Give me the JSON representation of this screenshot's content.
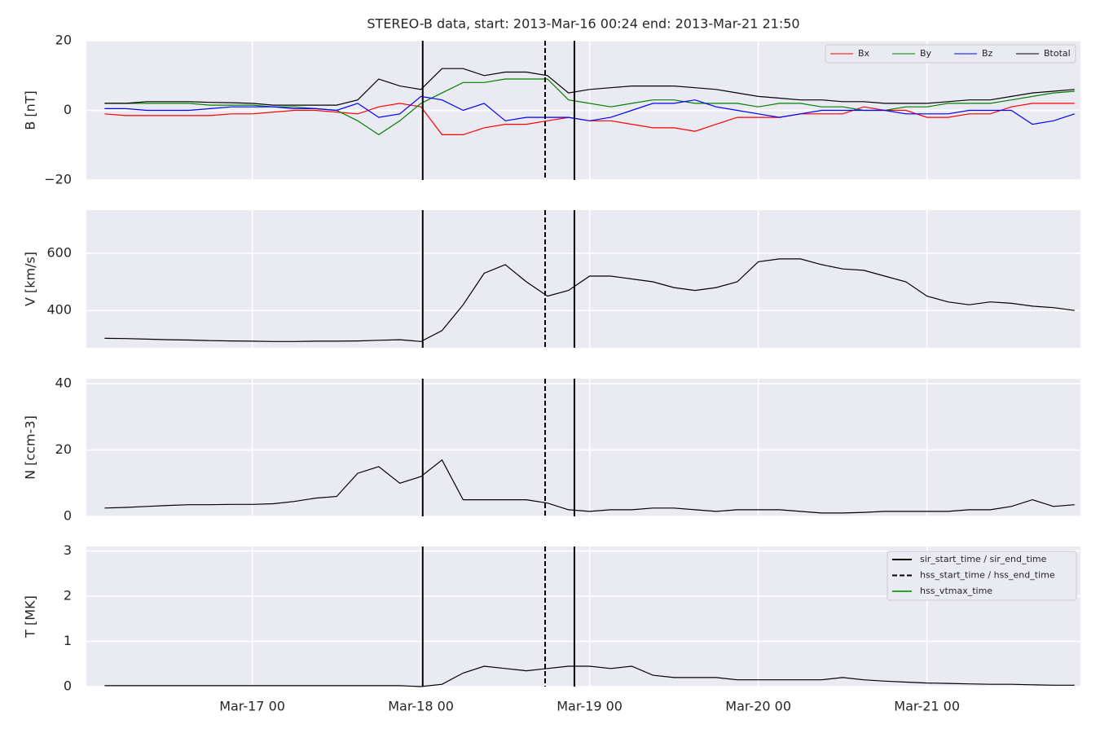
{
  "chart_data": [
    {
      "type": "line",
      "title": "STEREO-B data, start: 2013-Mar-16 00:24  end: 2013-Mar-21 21:50",
      "ylabel": "B [nT]",
      "ylim": [
        -20,
        20
      ],
      "yticks": [
        {
          "value": -20,
          "label": "−20"
        },
        0,
        20
      ],
      "grid": true,
      "legend": "upper right",
      "x": [
        "Mar-16 03",
        "Mar-16 06",
        "Mar-16 09",
        "Mar-16 12",
        "Mar-16 15",
        "Mar-16 18",
        "Mar-16 21",
        "Mar-17 00",
        "Mar-17 03",
        "Mar-17 06",
        "Mar-17 09",
        "Mar-17 12",
        "Mar-17 15",
        "Mar-17 18",
        "Mar-17 21",
        "Mar-18 00",
        "Mar-18 03",
        "Mar-18 06",
        "Mar-18 09",
        "Mar-18 12",
        "Mar-18 15",
        "Mar-18 18",
        "Mar-18 21",
        "Mar-19 00",
        "Mar-19 03",
        "Mar-19 06",
        "Mar-19 09",
        "Mar-19 12",
        "Mar-19 15",
        "Mar-19 18",
        "Mar-19 21",
        "Mar-20 00",
        "Mar-20 03",
        "Mar-20 06",
        "Mar-20 09",
        "Mar-20 12",
        "Mar-20 15",
        "Mar-20 18",
        "Mar-20 21",
        "Mar-21 00",
        "Mar-21 03",
        "Mar-21 06",
        "Mar-21 09",
        "Mar-21 12",
        "Mar-21 15",
        "Mar-21 18",
        "Mar-21 21"
      ],
      "series": [
        {
          "name": "Bx",
          "color": "#ff0000",
          "values": [
            -1,
            -1.5,
            -1.5,
            -1.5,
            -1.5,
            -1.5,
            -1,
            -1,
            -0.5,
            0,
            0,
            -0.5,
            -1,
            1,
            2,
            1,
            -7,
            -7,
            -5,
            -4,
            -4,
            -3,
            -2,
            -3,
            -3,
            -4,
            -5,
            -5,
            -6,
            -4,
            -2,
            -2,
            -2,
            -1,
            -1,
            -1,
            1,
            0,
            0,
            -2,
            -2,
            -1,
            -1,
            1,
            2,
            2,
            2
          ]
        },
        {
          "name": "By",
          "color": "#008000",
          "values": [
            2,
            2,
            2,
            2,
            2,
            1.5,
            1.5,
            1.5,
            1,
            1,
            0.5,
            0,
            -3,
            -7,
            -3,
            2,
            5,
            8,
            8,
            9,
            9,
            9,
            3,
            2,
            1,
            2,
            3,
            3,
            2,
            2,
            2,
            1,
            2,
            2,
            1,
            1,
            0,
            0,
            1,
            1,
            2,
            2,
            2,
            3,
            4,
            5,
            5.5
          ]
        },
        {
          "name": "Bz",
          "color": "#0000ff",
          "values": [
            0.5,
            0.5,
            0,
            0,
            0,
            0.5,
            1,
            1,
            1,
            0.5,
            0.5,
            0,
            2,
            -2,
            -1,
            4,
            3,
            0,
            2,
            -3,
            -2,
            -2,
            -2,
            -3,
            -2,
            0,
            2,
            2,
            3,
            1,
            0,
            -1,
            -2,
            -1,
            0,
            0,
            0,
            0,
            -1,
            -1,
            -1,
            0,
            0,
            0,
            -4,
            -3,
            -1
          ]
        },
        {
          "name": "Btotal",
          "color": "#000000",
          "values": [
            2,
            2,
            2.5,
            2.5,
            2.5,
            2.3,
            2.2,
            2,
            1.5,
            1.5,
            1.5,
            1.5,
            3,
            9,
            7,
            6,
            12,
            12,
            10,
            11,
            11,
            10,
            5,
            6,
            6.5,
            7,
            7,
            7,
            6.5,
            6,
            5,
            4,
            3.5,
            3,
            3,
            2.5,
            2.5,
            2,
            2,
            2,
            2.5,
            3,
            3,
            4,
            5,
            5.5,
            6
          ]
        }
      ]
    },
    {
      "type": "line",
      "ylabel": "V [km/s]",
      "ylim": [
        270,
        750
      ],
      "yticks": [
        400,
        600
      ],
      "grid": true,
      "x": [
        "Mar-16 03",
        "Mar-16 06",
        "Mar-16 09",
        "Mar-16 12",
        "Mar-16 15",
        "Mar-16 18",
        "Mar-16 21",
        "Mar-17 00",
        "Mar-17 03",
        "Mar-17 06",
        "Mar-17 09",
        "Mar-17 12",
        "Mar-17 15",
        "Mar-17 18",
        "Mar-17 21",
        "Mar-18 00",
        "Mar-18 03",
        "Mar-18 06",
        "Mar-18 09",
        "Mar-18 12",
        "Mar-18 15",
        "Mar-18 18",
        "Mar-18 21",
        "Mar-19 00",
        "Mar-19 03",
        "Mar-19 06",
        "Mar-19 09",
        "Mar-19 12",
        "Mar-19 15",
        "Mar-19 18",
        "Mar-19 21",
        "Mar-20 00",
        "Mar-20 03",
        "Mar-20 06",
        "Mar-20 09",
        "Mar-20 12",
        "Mar-20 15",
        "Mar-20 18",
        "Mar-20 21",
        "Mar-21 00",
        "Mar-21 03",
        "Mar-21 06",
        "Mar-21 09",
        "Mar-21 12",
        "Mar-21 15",
        "Mar-21 18",
        "Mar-21 21"
      ],
      "series": [
        {
          "color": "#000000",
          "values": [
            303,
            302,
            300,
            298,
            297,
            295,
            294,
            293,
            292,
            292,
            293,
            293,
            294,
            296,
            298,
            292,
            330,
            420,
            530,
            560,
            500,
            450,
            470,
            520,
            520,
            510,
            500,
            480,
            470,
            480,
            500,
            570,
            580,
            580,
            560,
            545,
            540,
            520,
            500,
            450,
            430,
            420,
            430,
            425,
            415,
            410,
            400
          ]
        }
      ]
    },
    {
      "type": "line",
      "ylabel": "N [ccm-3]",
      "ylim": [
        0,
        41.5
      ],
      "yticks": [
        0,
        20,
        40
      ],
      "grid": true,
      "x": [
        "Mar-16 03",
        "Mar-16 06",
        "Mar-16 09",
        "Mar-16 12",
        "Mar-16 15",
        "Mar-16 18",
        "Mar-16 21",
        "Mar-17 00",
        "Mar-17 03",
        "Mar-17 06",
        "Mar-17 09",
        "Mar-17 12",
        "Mar-17 15",
        "Mar-17 18",
        "Mar-17 21",
        "Mar-18 00",
        "Mar-18 03",
        "Mar-18 06",
        "Mar-18 09",
        "Mar-18 12",
        "Mar-18 15",
        "Mar-18 18",
        "Mar-18 21",
        "Mar-19 00",
        "Mar-19 03",
        "Mar-19 06",
        "Mar-19 09",
        "Mar-19 12",
        "Mar-19 15",
        "Mar-19 18",
        "Mar-19 21",
        "Mar-20 00",
        "Mar-20 03",
        "Mar-20 06",
        "Mar-20 09",
        "Mar-20 12",
        "Mar-20 15",
        "Mar-20 18",
        "Mar-20 21",
        "Mar-21 00",
        "Mar-21 03",
        "Mar-21 06",
        "Mar-21 09",
        "Mar-21 12",
        "Mar-21 15",
        "Mar-21 18",
        "Mar-21 21"
      ],
      "series": [
        {
          "color": "#000000",
          "values": [
            2.5,
            2.7,
            3,
            3.3,
            3.5,
            3.5,
            3.6,
            3.6,
            3.8,
            4.5,
            5.5,
            6,
            13,
            15,
            10,
            12,
            17,
            5,
            5,
            5,
            5,
            4,
            2,
            1.5,
            2,
            2,
            2.5,
            2.5,
            2,
            1.5,
            2,
            2,
            2,
            1.5,
            1,
            1,
            1.2,
            1.5,
            1.5,
            1.5,
            1.5,
            2,
            2,
            3,
            5,
            3,
            3.5
          ]
        }
      ]
    },
    {
      "type": "line",
      "ylabel": "T [MK]",
      "ylim": [
        0,
        3.1
      ],
      "yticks": [
        0,
        1,
        2,
        3
      ],
      "grid": true,
      "legend": "upper right",
      "xlim": [
        "Mar-16 00:24",
        "Mar-21 21:50"
      ],
      "xticks": [
        "Mar-17 00",
        "Mar-18 00",
        "Mar-19 00",
        "Mar-20 00",
        "Mar-21 00"
      ],
      "x": [
        "Mar-16 03",
        "Mar-16 06",
        "Mar-16 09",
        "Mar-16 12",
        "Mar-16 15",
        "Mar-16 18",
        "Mar-16 21",
        "Mar-17 00",
        "Mar-17 03",
        "Mar-17 06",
        "Mar-17 09",
        "Mar-17 12",
        "Mar-17 15",
        "Mar-17 18",
        "Mar-17 21",
        "Mar-18 00",
        "Mar-18 03",
        "Mar-18 06",
        "Mar-18 09",
        "Mar-18 12",
        "Mar-18 15",
        "Mar-18 18",
        "Mar-18 21",
        "Mar-19 00",
        "Mar-19 03",
        "Mar-19 06",
        "Mar-19 09",
        "Mar-19 12",
        "Mar-19 15",
        "Mar-19 18",
        "Mar-19 21",
        "Mar-20 00",
        "Mar-20 03",
        "Mar-20 06",
        "Mar-20 09",
        "Mar-20 12",
        "Mar-20 15",
        "Mar-20 18",
        "Mar-20 21",
        "Mar-21 00",
        "Mar-21 03",
        "Mar-21 06",
        "Mar-21 09",
        "Mar-21 12",
        "Mar-21 15",
        "Mar-21 18",
        "Mar-21 21"
      ],
      "series": [
        {
          "color": "#000000",
          "values": [
            0.02,
            0.02,
            0.02,
            0.02,
            0.02,
            0.02,
            0.02,
            0.02,
            0.02,
            0.02,
            0.02,
            0.02,
            0.02,
            0.02,
            0.02,
            0,
            0.05,
            0.3,
            0.45,
            0.4,
            0.35,
            0.4,
            0.45,
            0.45,
            0.4,
            0.45,
            0.25,
            0.2,
            0.2,
            0.2,
            0.15,
            0.15,
            0.15,
            0.15,
            0.15,
            0.2,
            0.15,
            0.12,
            0.1,
            0.08,
            0.07,
            0.06,
            0.05,
            0.05,
            0.04,
            0.03,
            0.03
          ]
        }
      ],
      "events": [
        {
          "name": "sir_start_time / sir_end_time",
          "color": "#000000",
          "dash": "solid",
          "x": [
            "Mar-18 00:15",
            "Mar-18 21:50"
          ]
        },
        {
          "name": "hss_start_time / hss_end_time",
          "color": "#000000",
          "dash": "dashed",
          "x": [
            "Mar-18 17:40"
          ]
        },
        {
          "name": "hss_vtmax_time",
          "color": "#2ca02c",
          "dash": "solid"
        }
      ]
    }
  ]
}
